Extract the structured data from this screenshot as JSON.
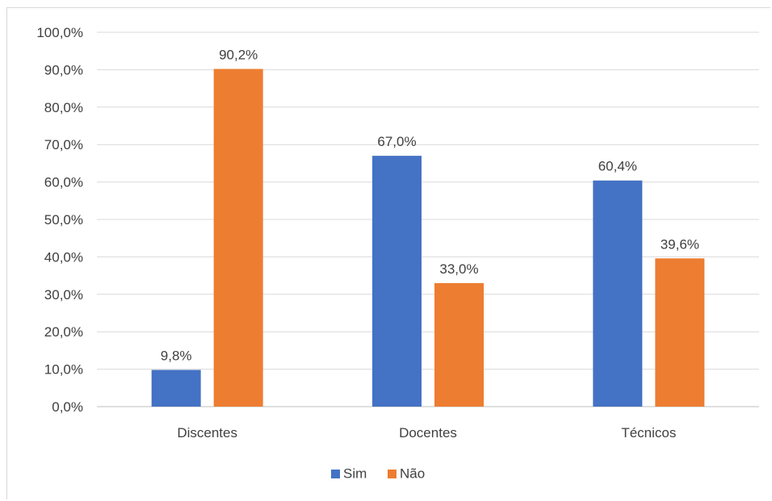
{
  "chart_data": {
    "type": "bar",
    "title": "",
    "xlabel": "",
    "ylabel": "",
    "categories": [
      "Discentes",
      "Docentes",
      "Técnicos"
    ],
    "series": [
      {
        "name": "Sim",
        "color": "#4472C4",
        "values": [
          9.8,
          67.0,
          60.4
        ],
        "labels": [
          "9,8%",
          "67,0%",
          "60,4%"
        ]
      },
      {
        "name": "Não",
        "color": "#ED7D31",
        "values": [
          90.2,
          33.0,
          39.6
        ],
        "labels": [
          "90,2%",
          "33,0%",
          "39,6%"
        ]
      }
    ],
    "ylim": [
      0,
      100
    ],
    "yticks": [
      0,
      10,
      20,
      30,
      40,
      50,
      60,
      70,
      80,
      90,
      100
    ],
    "ytick_labels": [
      "0,0%",
      "10,0%",
      "20,0%",
      "30,0%",
      "40,0%",
      "50,0%",
      "60,0%",
      "70,0%",
      "80,0%",
      "90,0%",
      "100,0%"
    ],
    "grid": true,
    "legend_position": "bottom"
  }
}
